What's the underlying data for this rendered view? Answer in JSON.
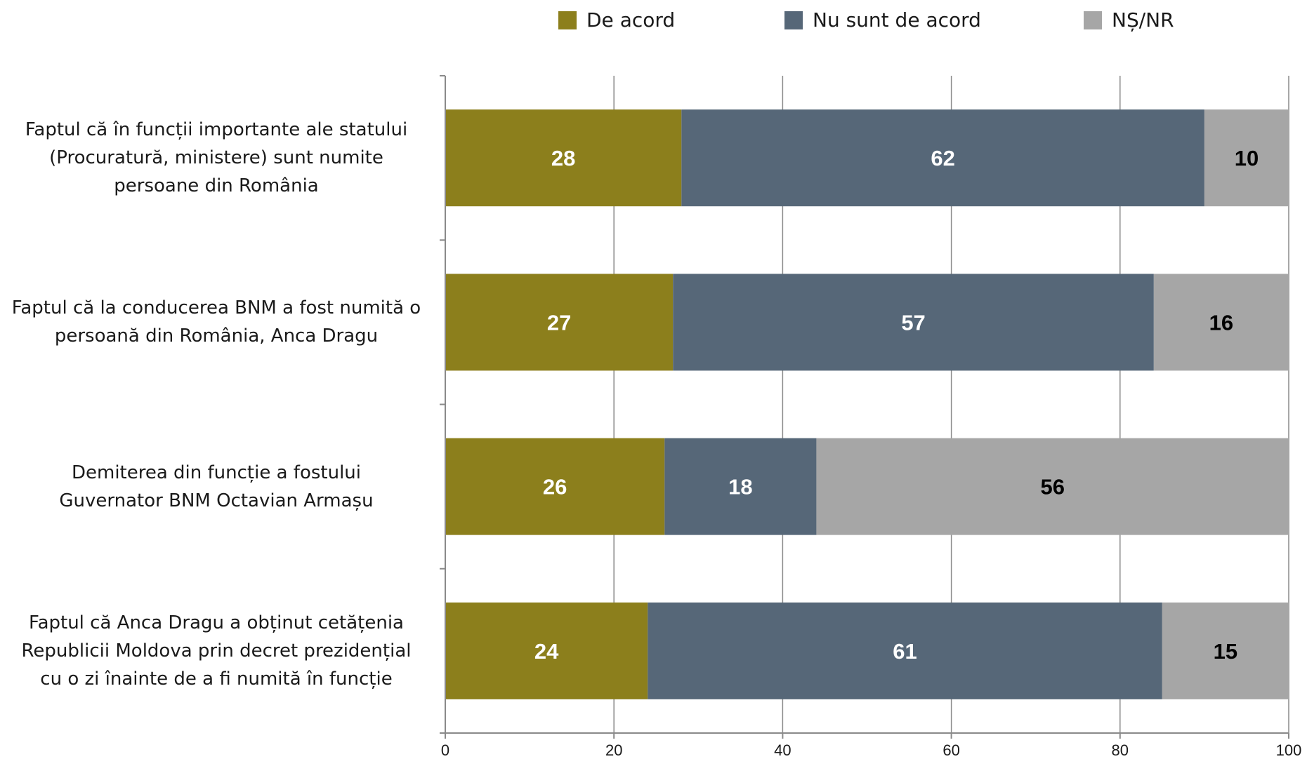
{
  "chart_data": {
    "type": "bar",
    "orientation": "horizontal",
    "stacked": true,
    "categories": [
      "Faptul că în funcții importante ale statului (Procuratură, ministere) sunt numite persoane din România",
      "Faptul că la conducerea BNM a fost numită o persoană din România, Anca Dragu",
      "Demiterea din funcție a fostului Guvernator BNM Octavian Armașu",
      "Faptul că Anca Dragu a obținut cetățenia Republicii Moldova prin decret prezidențial cu o zi înainte de a fi numită în funcție"
    ],
    "category_lines": [
      [
        "Faptul că în funcții importante ale statului",
        "(Procuratură, ministere) sunt numite",
        "persoane din România"
      ],
      [
        "Faptul că la conducerea BNM a fost numită o",
        "persoană din România, Anca Dragu"
      ],
      [
        "Demiterea din funcție a fostului",
        "Guvernator BNM Octavian Armașu"
      ],
      [
        "Faptul că Anca Dragu a obținut cetățenia",
        "Republicii Moldova prin decret prezidențial",
        "cu o zi înainte de a fi numită în funcție"
      ]
    ],
    "series": [
      {
        "name": "De acord",
        "color": "#8c7f1c",
        "label_color": "#ffffff",
        "values": [
          28,
          27,
          26,
          24
        ]
      },
      {
        "name": "Nu sunt de acord",
        "color": "#566778",
        "label_color": "#ffffff",
        "values": [
          62,
          57,
          18,
          61
        ]
      },
      {
        "name": "NȘ/NR",
        "color": "#a6a6a6",
        "label_color": "#000000",
        "values": [
          10,
          16,
          56,
          15
        ]
      }
    ],
    "xlim": [
      0,
      100
    ],
    "xticks": [
      0,
      20,
      40,
      60,
      80,
      100
    ],
    "grid": true,
    "legend": "top"
  }
}
